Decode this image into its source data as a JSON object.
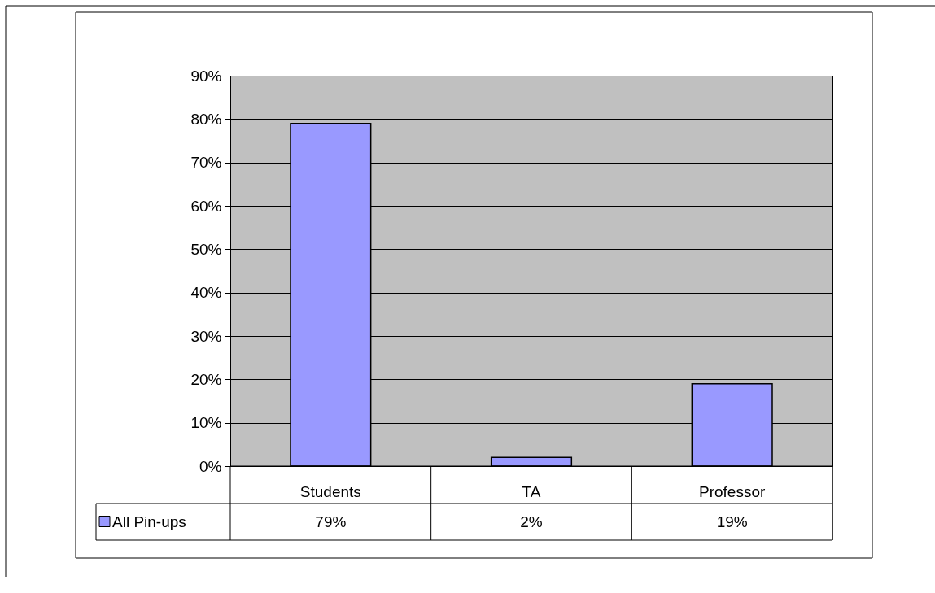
{
  "chart_data": {
    "type": "bar",
    "categories": [
      "Students",
      "TA",
      "Professor"
    ],
    "series": [
      {
        "name": "All Pin-ups",
        "color": "#9999ff",
        "values": [
          79,
          2,
          19
        ]
      }
    ],
    "value_labels": [
      "79%",
      "2%",
      "19%"
    ],
    "ylim": [
      0,
      90
    ],
    "yticks": [
      {
        "value": 0,
        "label": "0%"
      },
      {
        "value": 10,
        "label": "10%"
      },
      {
        "value": 20,
        "label": "20%"
      },
      {
        "value": 30,
        "label": "30%"
      },
      {
        "value": 40,
        "label": "40%"
      },
      {
        "value": 50,
        "label": "50%"
      },
      {
        "value": 60,
        "label": "60%"
      },
      {
        "value": 70,
        "label": "70%"
      },
      {
        "value": 80,
        "label": "80%"
      },
      {
        "value": 90,
        "label": "90%"
      }
    ],
    "grid": "y",
    "legend": "bottom left"
  }
}
